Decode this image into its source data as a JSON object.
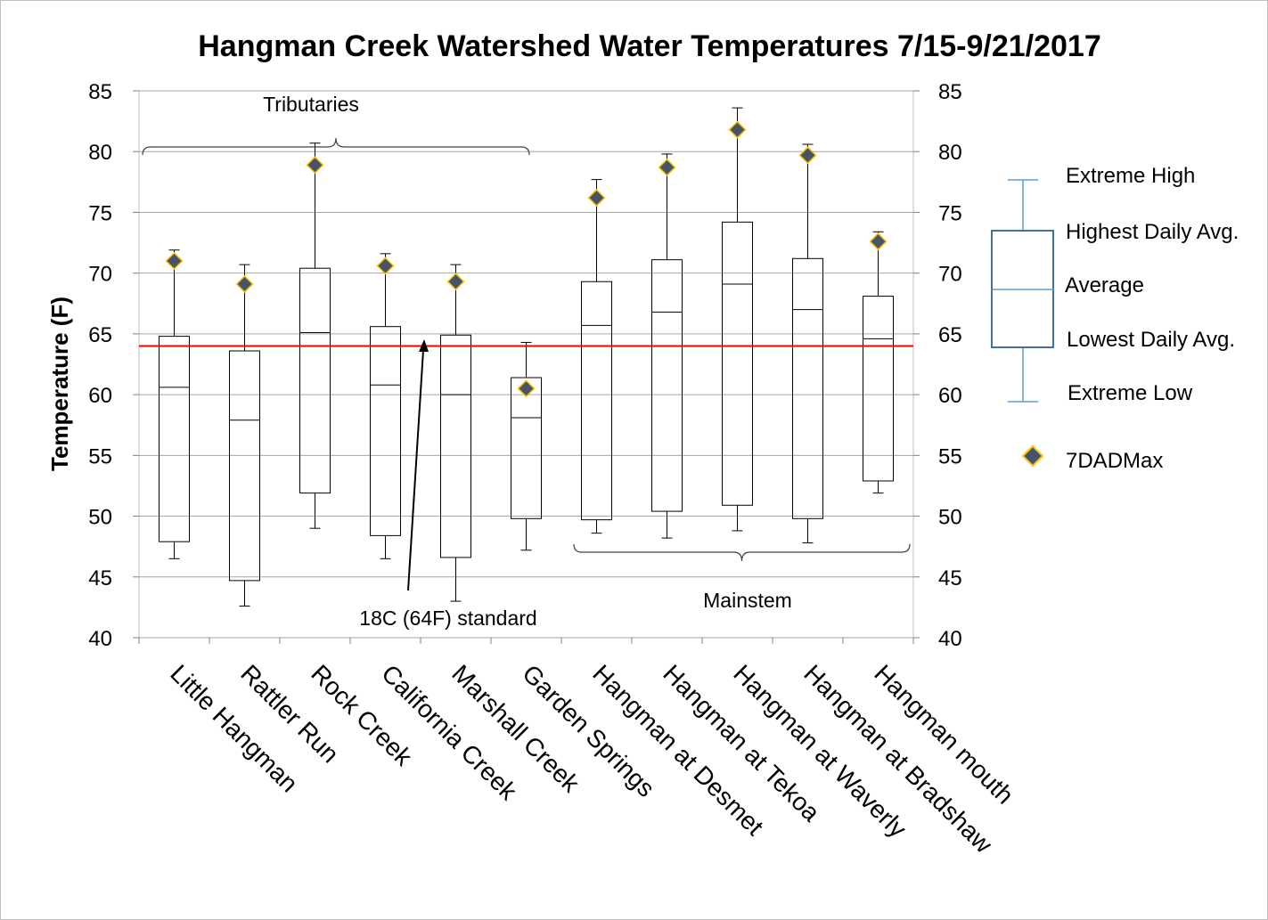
{
  "chart_data": {
    "type": "box",
    "title": "Hangman Creek Watershed Water Temperatures 7/15-9/21/2017",
    "ylabel": "Temperature (F)",
    "xlabel": "",
    "ylim": [
      40,
      85
    ],
    "yticks": [
      "40",
      "45",
      "50",
      "55",
      "60",
      "65",
      "70",
      "75",
      "80",
      "85"
    ],
    "grid": true,
    "secondary_axis": true,
    "categories": [
      "Little Hangman",
      "Rattler Run",
      "Rock Creek",
      "California Creek",
      "Marshall Creek",
      "Garden Springs",
      "Hangman at Desmet",
      "Hangman at Tekoa",
      "Hangman at Waverly",
      "Hangman at Bradshaw",
      "Hangman mouth"
    ],
    "series": [
      {
        "name": "Extreme High",
        "values": [
          71.9,
          70.7,
          80.7,
          71.6,
          70.7,
          64.3,
          77.7,
          79.8,
          83.6,
          80.6,
          73.4
        ]
      },
      {
        "name": "Highest Daily Avg.",
        "values": [
          64.8,
          63.6,
          70.4,
          65.6,
          64.9,
          61.4,
          69.3,
          71.1,
          74.2,
          71.2,
          68.1
        ]
      },
      {
        "name": "Average",
        "values": [
          60.6,
          57.9,
          65.1,
          60.8,
          60.0,
          58.1,
          65.7,
          66.8,
          69.1,
          67.0,
          64.6
        ]
      },
      {
        "name": "Lowest Daily Avg.",
        "values": [
          47.9,
          44.7,
          51.9,
          48.4,
          46.6,
          49.8,
          49.7,
          50.4,
          50.9,
          49.8,
          52.9
        ]
      },
      {
        "name": "Extreme Low",
        "values": [
          46.5,
          42.6,
          49.0,
          46.5,
          43.0,
          47.2,
          48.6,
          48.2,
          48.8,
          47.8,
          51.9
        ]
      },
      {
        "name": "7DADMax",
        "values": [
          71.0,
          69.1,
          78.9,
          70.6,
          69.3,
          60.5,
          76.2,
          78.7,
          81.8,
          79.7,
          72.6
        ]
      }
    ],
    "reference_line": {
      "label": "18C (64F) standard",
      "value": 64.0,
      "color": "#ff0000"
    },
    "annotations": [
      {
        "label": "Tributaries",
        "first_category": "Little Hangman",
        "last_category": "Garden Springs"
      },
      {
        "label": "Mainstem",
        "first_category": "Hangman at Desmet",
        "last_category": "Hangman mouth"
      }
    ],
    "legend_position": "right",
    "colors": {
      "box": "#000000",
      "legend_box": "#41719c",
      "legend_whisker": "#5b9bd5",
      "marker_fill": "#44546a",
      "marker_edge": "#ffc000",
      "grid": "#a6a6a6"
    }
  }
}
